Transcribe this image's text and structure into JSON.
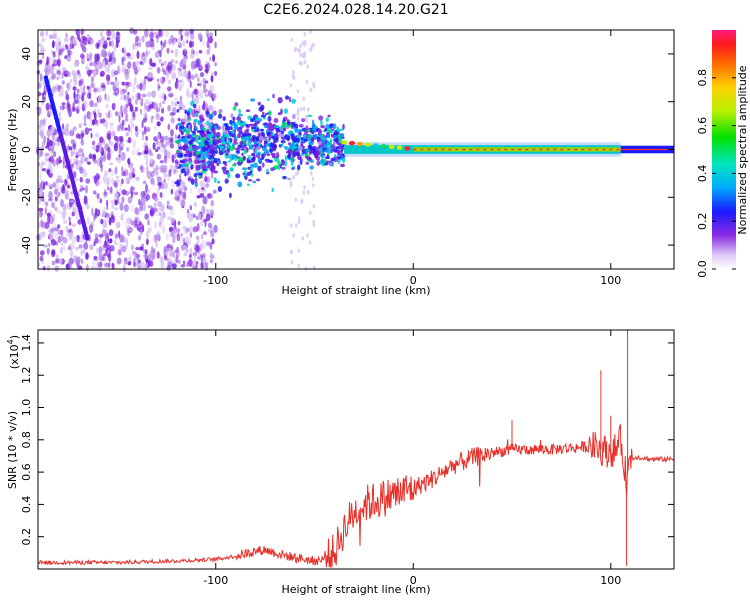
{
  "title": "C2E6.2024.028.14.20.G21",
  "chart_data": [
    {
      "type": "heatmap",
      "xlabel": "Height of straight line (km)",
      "ylabel": "Frequency (Hz)",
      "xlim": [
        -190,
        132
      ],
      "ylim": [
        -50,
        50
      ],
      "xticks": [
        -100,
        0,
        100
      ],
      "yticks": [
        -40,
        -20,
        0,
        20,
        40
      ],
      "colorbar": {
        "label": "Normalized spectral amplitude",
        "range": [
          0,
          1
        ],
        "ticks": [
          0.0,
          0.2,
          0.4,
          0.6,
          0.8
        ]
      },
      "features": {
        "diagonal_line": {
          "from": [
            -186,
            30
          ],
          "to": [
            -165,
            -37
          ]
        },
        "central_line_frequency": 0,
        "noise_region_x": [
          -190,
          -100
        ],
        "spread_region_x": [
          -120,
          -35
        ],
        "steady_region_x": [
          -35,
          105
        ]
      }
    },
    {
      "type": "line",
      "xlabel": "Height of straight line (km)",
      "ylabel": "SNR (10 * v/v)",
      "scale_label": "(x10",
      "scale_exponent": "4",
      "scale_suffix": ")",
      "xlim": [
        -190,
        132
      ],
      "ylim": [
        0,
        1.48
      ],
      "xticks": [
        -100,
        0,
        100
      ],
      "yticks": [
        0.2,
        0.4,
        0.6,
        0.8,
        1.0,
        1.2,
        1.4
      ],
      "color": "#e8302a",
      "series": [
        {
          "x": [
            -190,
            -150,
            -120,
            -100,
            -90,
            -80,
            -75,
            -70,
            -60,
            -50,
            -45,
            -40,
            -35,
            -30,
            -25,
            -20,
            -15,
            -10,
            -5,
            0,
            10,
            20,
            30,
            40,
            50,
            60,
            70,
            80,
            90,
            95,
            100,
            103,
            105,
            108,
            110,
            115,
            120,
            132
          ],
          "y": [
            0.04,
            0.04,
            0.05,
            0.06,
            0.08,
            0.11,
            0.12,
            0.1,
            0.07,
            0.05,
            0.06,
            0.1,
            0.25,
            0.35,
            0.4,
            0.42,
            0.44,
            0.46,
            0.48,
            0.5,
            0.56,
            0.64,
            0.69,
            0.72,
            0.74,
            0.74,
            0.74,
            0.75,
            0.76,
            0.74,
            0.72,
            0.75,
            0.8,
            0.55,
            0.7,
            0.69,
            0.68,
            0.68
          ]
        }
      ],
      "spikes": [
        {
          "x": 95,
          "y": 1.23
        },
        {
          "x": 108.5,
          "y": 1.48
        },
        {
          "x": 108,
          "y": 0.02
        },
        {
          "x": 50,
          "y": 0.92
        },
        {
          "x": 100,
          "y": 0.95
        }
      ]
    }
  ]
}
